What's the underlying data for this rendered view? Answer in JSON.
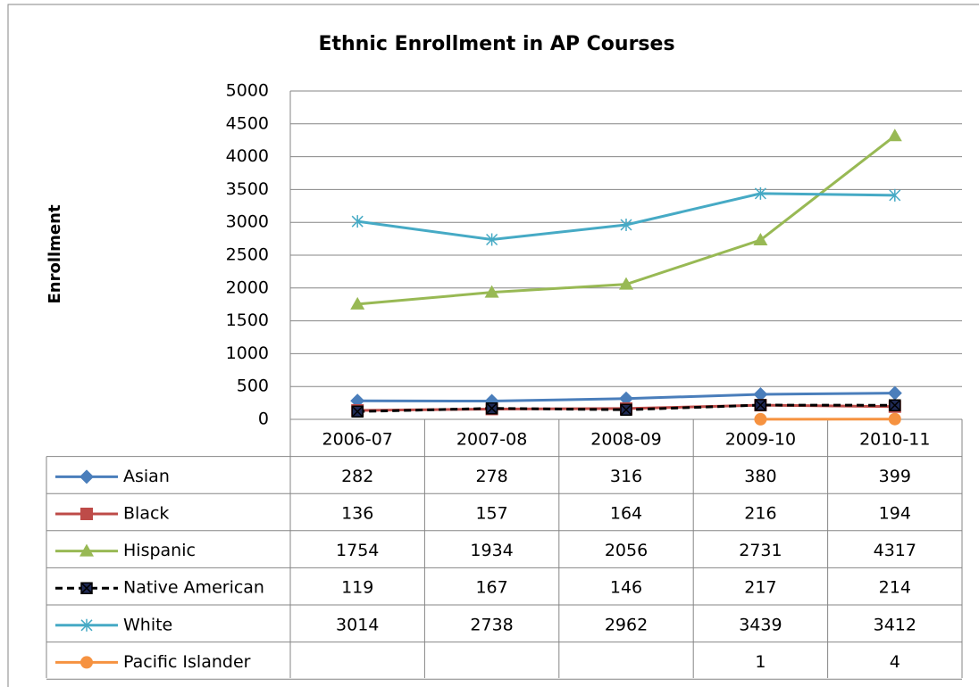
{
  "chart_data": {
    "type": "line",
    "title": "Ethnic Enrollment in AP Courses",
    "y_label": "Enrollment",
    "categories": [
      "2006-07",
      "2007-08",
      "2008-09",
      "2009-10",
      "2010-11"
    ],
    "series": [
      {
        "name": "Asian",
        "color": "#4a7ebb",
        "marker": "diamond",
        "line_style": "solid",
        "values": [
          282,
          278,
          316,
          380,
          399
        ]
      },
      {
        "name": "Black",
        "color": "#be4b48",
        "marker": "square",
        "line_style": "solid",
        "values": [
          136,
          157,
          164,
          216,
          194
        ]
      },
      {
        "name": "Hispanic",
        "color": "#98b954",
        "marker": "triangle",
        "line_style": "solid",
        "values": [
          1754,
          1934,
          2056,
          2731,
          4317
        ]
      },
      {
        "name": "Native American",
        "color": "#000000",
        "marker": "x-square",
        "line_style": "dashed",
        "values": [
          119,
          167,
          146,
          217,
          214
        ]
      },
      {
        "name": "White",
        "color": "#46aac5",
        "marker": "asterisk",
        "line_style": "solid",
        "values": [
          3014,
          2738,
          2962,
          3439,
          3412
        ]
      },
      {
        "name": "Pacific Islander",
        "color": "#f69240",
        "marker": "circle",
        "line_style": "solid",
        "values": [
          null,
          null,
          null,
          1,
          4
        ]
      }
    ],
    "ylim": [
      0,
      5000
    ],
    "yticks": [
      0,
      500,
      1000,
      1500,
      2000,
      2500,
      3000,
      3500,
      4000,
      4500,
      5000
    ],
    "grid": true,
    "data_table": true
  }
}
